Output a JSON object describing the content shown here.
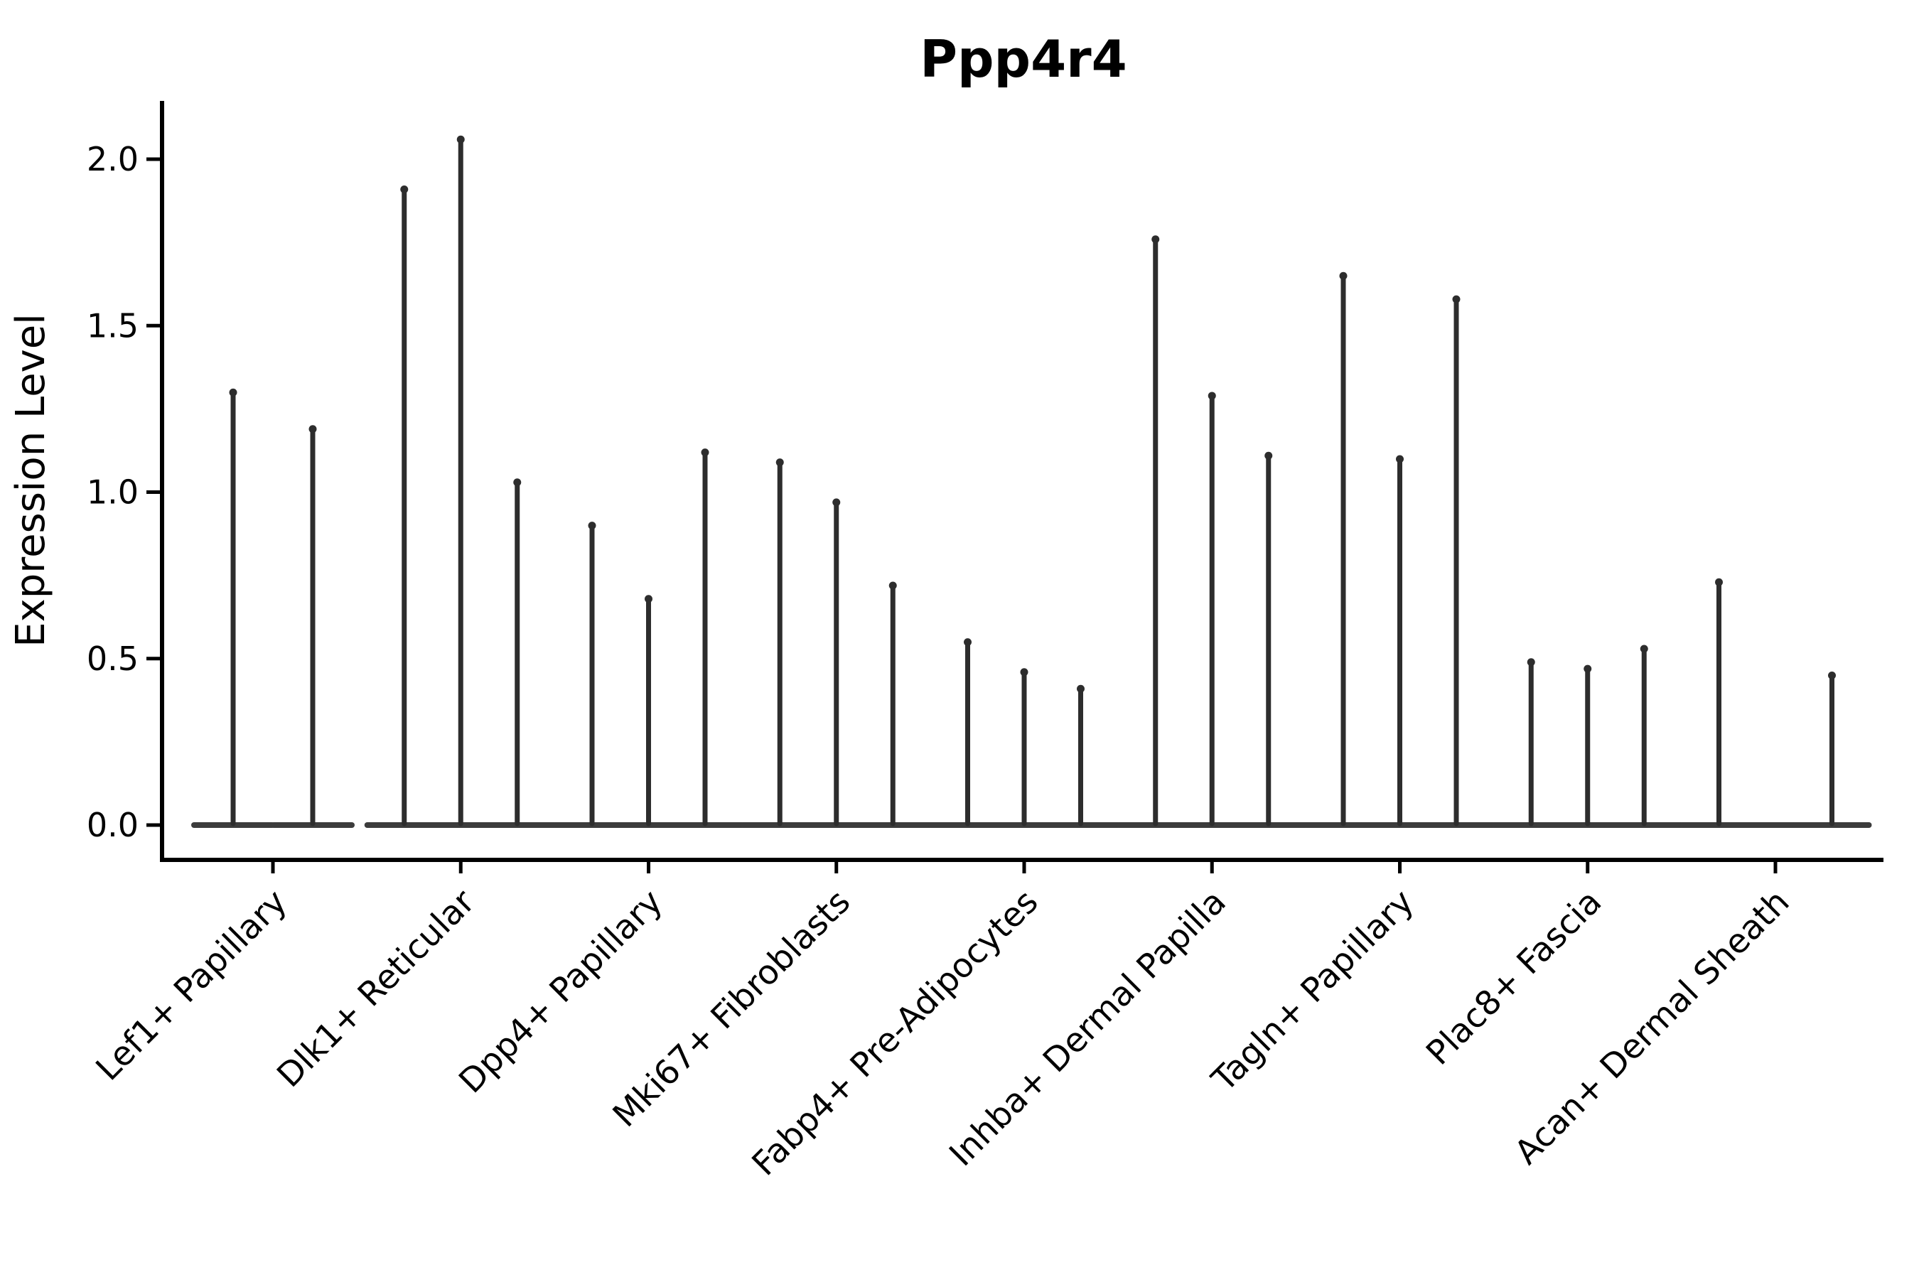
{
  "chart_data": {
    "type": "violin",
    "title": "Ppp4r4",
    "xlabel": "",
    "ylabel": "Expression Level",
    "ytick_labels": [
      "0.0",
      "0.5",
      "1.0",
      "1.5",
      "2.0"
    ],
    "ytick_values": [
      0.0,
      0.5,
      1.0,
      1.5,
      2.0
    ],
    "ylim": [
      0.0,
      2.17
    ],
    "grid": false,
    "legend": null,
    "x_tick_rotation": 45,
    "violin_style": "narrow-spike-with-flat-base-at-zero",
    "colors": {
      "violin": "#2d2d2d",
      "violin_baseline": "#3c3c3c",
      "axis": "#000000",
      "background": "#ffffff"
    },
    "categories": [
      "Lef1+ Papillary",
      "Dlk1+ Reticular",
      "Dpp4+ Papillary",
      "Mki67+ Fibroblasts",
      "Fabp4+ Pre-Adipocytes",
      "Inhba+ Dermal Papilla",
      "Tagln+ Papillary",
      "Plac8+ Fascia",
      "Acan+ Dermal Sheath"
    ],
    "series": [
      {
        "category": "Lef1+ Papillary",
        "violin_max_expression": [
          1.31,
          1.2
        ]
      },
      {
        "category": "Dlk1+ Reticular",
        "violin_max_expression": [
          1.92,
          2.07,
          1.04
        ]
      },
      {
        "category": "Dpp4+ Papillary",
        "violin_max_expression": [
          0.91,
          0.69,
          1.13
        ]
      },
      {
        "category": "Mki67+ Fibroblasts",
        "violin_max_expression": [
          1.1,
          0.98,
          0.73
        ]
      },
      {
        "category": "Fabp4+ Pre-Adipocytes",
        "violin_max_expression": [
          0.56,
          0.47,
          0.42
        ]
      },
      {
        "category": "Inhba+ Dermal Papilla",
        "violin_max_expression": [
          1.77,
          1.3,
          1.12
        ]
      },
      {
        "category": "Tagln+ Papillary",
        "violin_max_expression": [
          1.66,
          1.11,
          1.59
        ]
      },
      {
        "category": "Plac8+ Fascia",
        "violin_max_expression": [
          0.5,
          0.48,
          0.54
        ]
      },
      {
        "category": "Acan+ Dermal Sheath",
        "violin_max_expression": [
          0.74,
          0.0,
          0.46
        ]
      }
    ]
  }
}
